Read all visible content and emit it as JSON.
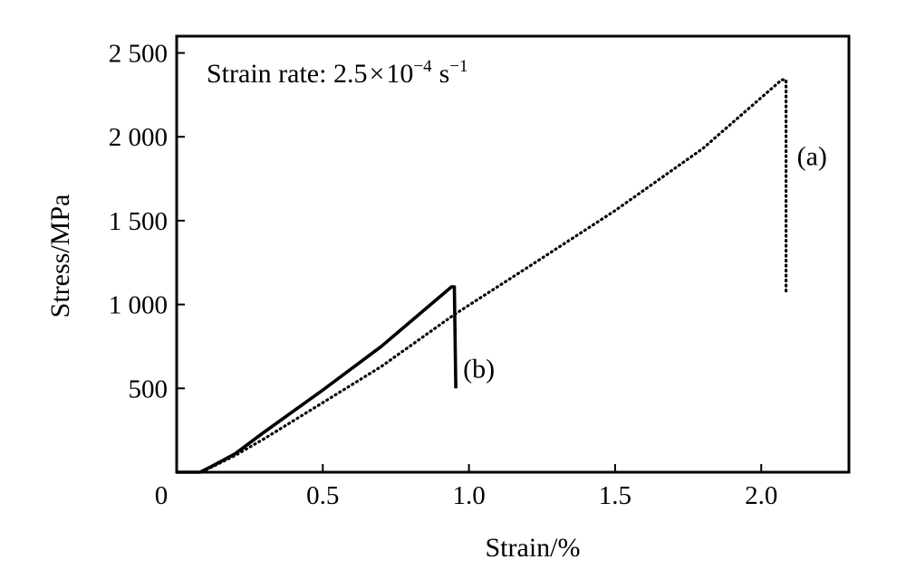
{
  "chart_data": {
    "type": "line",
    "xlabel": "Strain/%",
    "ylabel": "Stress/MPa",
    "xlim": [
      0,
      2.3
    ],
    "ylim": [
      0,
      2600
    ],
    "grid": false,
    "x_ticks": [
      {
        "value": 0,
        "label": "0"
      },
      {
        "value": 0.5,
        "label": "0.5"
      },
      {
        "value": 1.0,
        "label": "1.0"
      },
      {
        "value": 1.5,
        "label": "1.5"
      },
      {
        "value": 2.0,
        "label": "2.0"
      }
    ],
    "y_ticks": [
      {
        "value": 500,
        "label": "500"
      },
      {
        "value": 1000,
        "label": "1 000"
      },
      {
        "value": 1500,
        "label": "1 500"
      },
      {
        "value": 2000,
        "label": "2 000"
      },
      {
        "value": 2500,
        "label": "2 500"
      }
    ],
    "annotation": {
      "prefix": "Strain rate: 2.5",
      "times": "×",
      "base": "10",
      "exponent": "−4",
      "unit": "s",
      "unit_exponent": "−1"
    },
    "series": [
      {
        "label": "(a)",
        "style": "dotted",
        "color": "#000000",
        "points": [
          [
            0.0,
            0
          ],
          [
            0.08,
            0
          ],
          [
            0.12,
            30
          ],
          [
            0.2,
            100
          ],
          [
            0.3,
            200
          ],
          [
            0.5,
            415
          ],
          [
            0.7,
            630
          ],
          [
            0.95,
            940
          ],
          [
            1.2,
            1220
          ],
          [
            1.5,
            1560
          ],
          [
            1.8,
            1930
          ],
          [
            2.07,
            2340
          ],
          [
            2.085,
            2340
          ],
          [
            2.085,
            1070
          ]
        ]
      },
      {
        "label": "(b)",
        "style": "solid",
        "color": "#000000",
        "points": [
          [
            0.0,
            0
          ],
          [
            0.08,
            0
          ],
          [
            0.12,
            35
          ],
          [
            0.2,
            110
          ],
          [
            0.3,
            240
          ],
          [
            0.5,
            490
          ],
          [
            0.7,
            750
          ],
          [
            0.94,
            1105
          ],
          [
            0.95,
            1105
          ],
          [
            0.955,
            500
          ]
        ]
      }
    ]
  }
}
